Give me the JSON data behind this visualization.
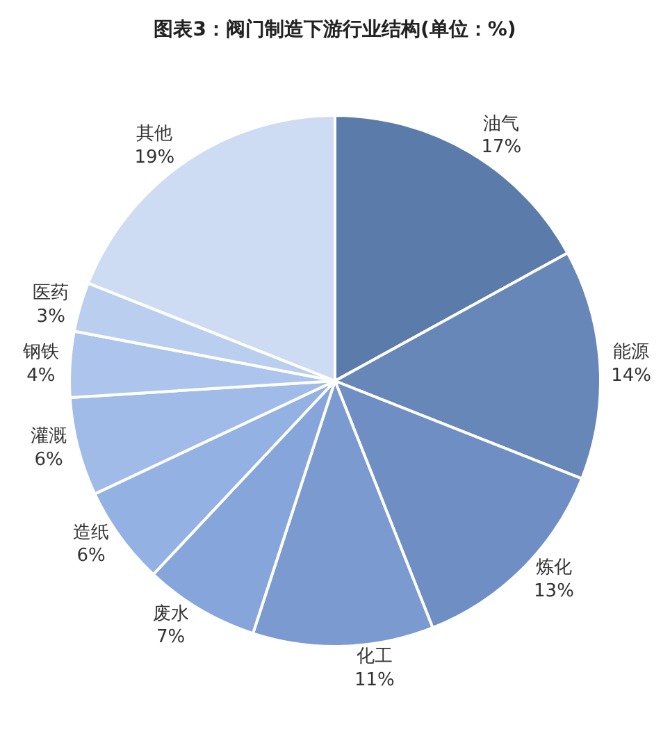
{
  "chart_data": {
    "type": "pie",
    "title": "图表3：阀门制造下游行业结构(单位：%)",
    "categories": [
      "油气",
      "能源",
      "炼化",
      "化工",
      "废水",
      "造纸",
      "灌溉",
      "钢铁",
      "医药",
      "其他"
    ],
    "values": [
      17,
      14,
      13,
      11,
      7,
      6,
      6,
      4,
      3,
      19
    ],
    "value_labels": [
      "17%",
      "14%",
      "13%",
      "11%",
      "7%",
      "6%",
      "6%",
      "4%",
      "3%",
      "19%"
    ],
    "colors": [
      "#5b7bab",
      "#6787b8",
      "#6f8fc4",
      "#7a9ad0",
      "#86a6db",
      "#93b1e3",
      "#a0bbe8",
      "#adc5ec",
      "#bacff0",
      "#cddcf3"
    ],
    "legend": false
  }
}
